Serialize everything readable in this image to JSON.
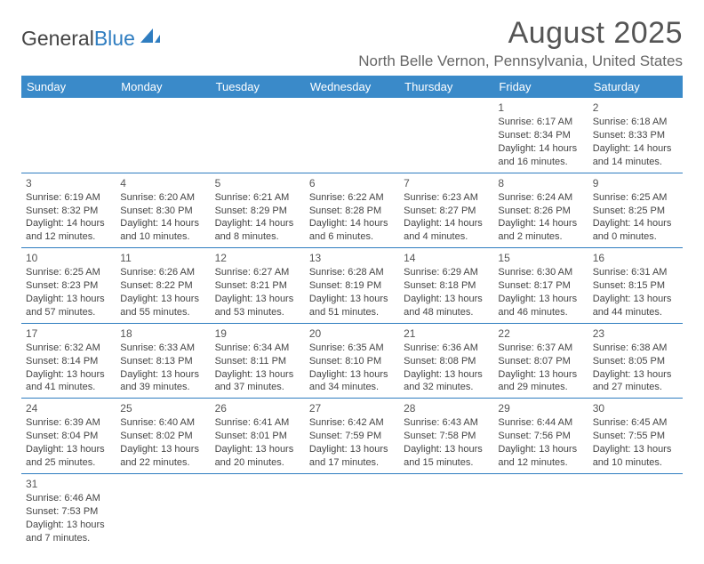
{
  "logo": {
    "text1": "General",
    "text2": "Blue"
  },
  "header": {
    "month_title": "August 2025",
    "location": "North Belle Vernon, Pennsylvania, United States"
  },
  "colors": {
    "header_bg": "#3a8ac9",
    "header_text": "#ffffff",
    "border": "#2f7dc0",
    "body_text": "#444444",
    "title_text": "#555555"
  },
  "weekdays": [
    "Sunday",
    "Monday",
    "Tuesday",
    "Wednesday",
    "Thursday",
    "Friday",
    "Saturday"
  ],
  "grid": [
    [
      null,
      null,
      null,
      null,
      null,
      {
        "day": "1",
        "sunrise": "Sunrise: 6:17 AM",
        "sunset": "Sunset: 8:34 PM",
        "daylight": "Daylight: 14 hours and 16 minutes."
      },
      {
        "day": "2",
        "sunrise": "Sunrise: 6:18 AM",
        "sunset": "Sunset: 8:33 PM",
        "daylight": "Daylight: 14 hours and 14 minutes."
      }
    ],
    [
      {
        "day": "3",
        "sunrise": "Sunrise: 6:19 AM",
        "sunset": "Sunset: 8:32 PM",
        "daylight": "Daylight: 14 hours and 12 minutes."
      },
      {
        "day": "4",
        "sunrise": "Sunrise: 6:20 AM",
        "sunset": "Sunset: 8:30 PM",
        "daylight": "Daylight: 14 hours and 10 minutes."
      },
      {
        "day": "5",
        "sunrise": "Sunrise: 6:21 AM",
        "sunset": "Sunset: 8:29 PM",
        "daylight": "Daylight: 14 hours and 8 minutes."
      },
      {
        "day": "6",
        "sunrise": "Sunrise: 6:22 AM",
        "sunset": "Sunset: 8:28 PM",
        "daylight": "Daylight: 14 hours and 6 minutes."
      },
      {
        "day": "7",
        "sunrise": "Sunrise: 6:23 AM",
        "sunset": "Sunset: 8:27 PM",
        "daylight": "Daylight: 14 hours and 4 minutes."
      },
      {
        "day": "8",
        "sunrise": "Sunrise: 6:24 AM",
        "sunset": "Sunset: 8:26 PM",
        "daylight": "Daylight: 14 hours and 2 minutes."
      },
      {
        "day": "9",
        "sunrise": "Sunrise: 6:25 AM",
        "sunset": "Sunset: 8:25 PM",
        "daylight": "Daylight: 14 hours and 0 minutes."
      }
    ],
    [
      {
        "day": "10",
        "sunrise": "Sunrise: 6:25 AM",
        "sunset": "Sunset: 8:23 PM",
        "daylight": "Daylight: 13 hours and 57 minutes."
      },
      {
        "day": "11",
        "sunrise": "Sunrise: 6:26 AM",
        "sunset": "Sunset: 8:22 PM",
        "daylight": "Daylight: 13 hours and 55 minutes."
      },
      {
        "day": "12",
        "sunrise": "Sunrise: 6:27 AM",
        "sunset": "Sunset: 8:21 PM",
        "daylight": "Daylight: 13 hours and 53 minutes."
      },
      {
        "day": "13",
        "sunrise": "Sunrise: 6:28 AM",
        "sunset": "Sunset: 8:19 PM",
        "daylight": "Daylight: 13 hours and 51 minutes."
      },
      {
        "day": "14",
        "sunrise": "Sunrise: 6:29 AM",
        "sunset": "Sunset: 8:18 PM",
        "daylight": "Daylight: 13 hours and 48 minutes."
      },
      {
        "day": "15",
        "sunrise": "Sunrise: 6:30 AM",
        "sunset": "Sunset: 8:17 PM",
        "daylight": "Daylight: 13 hours and 46 minutes."
      },
      {
        "day": "16",
        "sunrise": "Sunrise: 6:31 AM",
        "sunset": "Sunset: 8:15 PM",
        "daylight": "Daylight: 13 hours and 44 minutes."
      }
    ],
    [
      {
        "day": "17",
        "sunrise": "Sunrise: 6:32 AM",
        "sunset": "Sunset: 8:14 PM",
        "daylight": "Daylight: 13 hours and 41 minutes."
      },
      {
        "day": "18",
        "sunrise": "Sunrise: 6:33 AM",
        "sunset": "Sunset: 8:13 PM",
        "daylight": "Daylight: 13 hours and 39 minutes."
      },
      {
        "day": "19",
        "sunrise": "Sunrise: 6:34 AM",
        "sunset": "Sunset: 8:11 PM",
        "daylight": "Daylight: 13 hours and 37 minutes."
      },
      {
        "day": "20",
        "sunrise": "Sunrise: 6:35 AM",
        "sunset": "Sunset: 8:10 PM",
        "daylight": "Daylight: 13 hours and 34 minutes."
      },
      {
        "day": "21",
        "sunrise": "Sunrise: 6:36 AM",
        "sunset": "Sunset: 8:08 PM",
        "daylight": "Daylight: 13 hours and 32 minutes."
      },
      {
        "day": "22",
        "sunrise": "Sunrise: 6:37 AM",
        "sunset": "Sunset: 8:07 PM",
        "daylight": "Daylight: 13 hours and 29 minutes."
      },
      {
        "day": "23",
        "sunrise": "Sunrise: 6:38 AM",
        "sunset": "Sunset: 8:05 PM",
        "daylight": "Daylight: 13 hours and 27 minutes."
      }
    ],
    [
      {
        "day": "24",
        "sunrise": "Sunrise: 6:39 AM",
        "sunset": "Sunset: 8:04 PM",
        "daylight": "Daylight: 13 hours and 25 minutes."
      },
      {
        "day": "25",
        "sunrise": "Sunrise: 6:40 AM",
        "sunset": "Sunset: 8:02 PM",
        "daylight": "Daylight: 13 hours and 22 minutes."
      },
      {
        "day": "26",
        "sunrise": "Sunrise: 6:41 AM",
        "sunset": "Sunset: 8:01 PM",
        "daylight": "Daylight: 13 hours and 20 minutes."
      },
      {
        "day": "27",
        "sunrise": "Sunrise: 6:42 AM",
        "sunset": "Sunset: 7:59 PM",
        "daylight": "Daylight: 13 hours and 17 minutes."
      },
      {
        "day": "28",
        "sunrise": "Sunrise: 6:43 AM",
        "sunset": "Sunset: 7:58 PM",
        "daylight": "Daylight: 13 hours and 15 minutes."
      },
      {
        "day": "29",
        "sunrise": "Sunrise: 6:44 AM",
        "sunset": "Sunset: 7:56 PM",
        "daylight": "Daylight: 13 hours and 12 minutes."
      },
      {
        "day": "30",
        "sunrise": "Sunrise: 6:45 AM",
        "sunset": "Sunset: 7:55 PM",
        "daylight": "Daylight: 13 hours and 10 minutes."
      }
    ],
    [
      {
        "day": "31",
        "sunrise": "Sunrise: 6:46 AM",
        "sunset": "Sunset: 7:53 PM",
        "daylight": "Daylight: 13 hours and 7 minutes."
      },
      null,
      null,
      null,
      null,
      null,
      null
    ]
  ]
}
